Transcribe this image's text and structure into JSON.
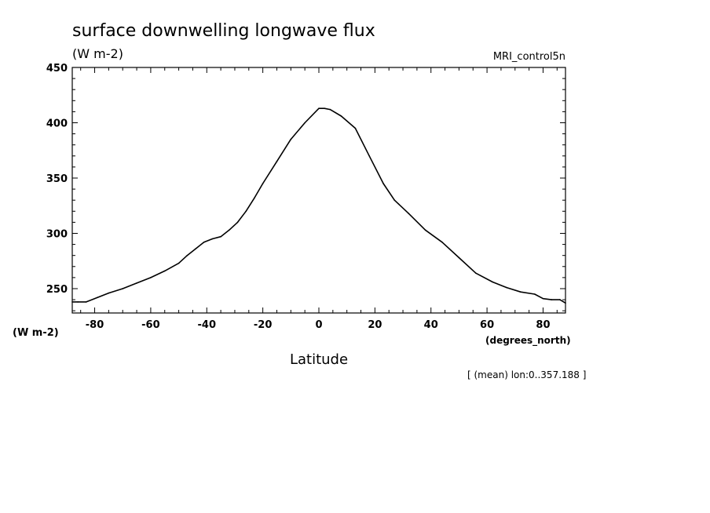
{
  "chart_data": {
    "type": "line",
    "title": "surface downwelling longwave flux",
    "units_label": "(W m-2)",
    "run_label": "MRI_control5n",
    "ylabel": "(W m-2)",
    "xlabel": "Latitude",
    "x_units_label": "(degrees_north)",
    "footnote": "[ (mean) lon:0..357.188 ]",
    "xlim": [
      -88,
      88
    ],
    "ylim": [
      228,
      450
    ],
    "x_ticks": [
      -80,
      -60,
      -40,
      -20,
      0,
      20,
      40,
      60,
      80
    ],
    "x_tick_labels": [
      "-80",
      "-60",
      "-40",
      "-20",
      "0",
      "20",
      "40",
      "60",
      "80"
    ],
    "y_ticks": [
      250,
      300,
      350,
      400,
      450
    ],
    "y_tick_labels": [
      "250",
      "300",
      "350",
      "400",
      "450"
    ],
    "grid": false,
    "series": [
      {
        "x": [
          -88,
          -86,
          -83,
          -79,
          -75,
          -70,
          -65,
          -60,
          -55,
          -50,
          -47,
          -44,
          -41,
          -38,
          -35,
          -32,
          -29,
          -26,
          -23,
          -20,
          -15,
          -10,
          -5,
          0,
          2,
          4,
          8,
          13,
          18,
          23,
          27,
          32,
          38,
          44,
          50,
          56,
          62,
          67,
          72,
          77,
          80,
          83,
          86,
          88
        ],
        "y": [
          238,
          238,
          238,
          242,
          246,
          250,
          255,
          260,
          266,
          273,
          280,
          286,
          292,
          295,
          297,
          303,
          310,
          320,
          332,
          345,
          365,
          385,
          400,
          413,
          413,
          412,
          406,
          395,
          370,
          345,
          330,
          318,
          303,
          292,
          278,
          264,
          256,
          251,
          247,
          245,
          241,
          240,
          240,
          237
        ]
      }
    ],
    "colors": {
      "line": "#000000",
      "axes": "#000000",
      "background": "#ffffff"
    }
  }
}
